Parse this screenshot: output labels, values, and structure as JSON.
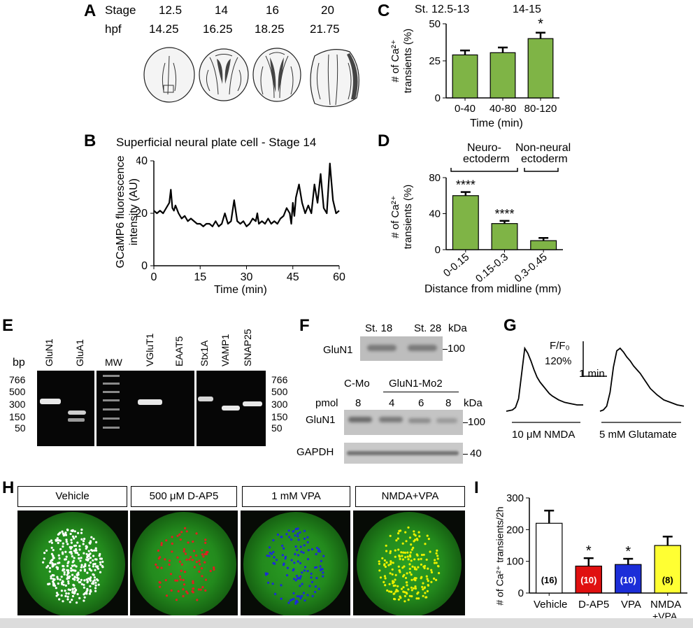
{
  "panelA": {
    "label": "A",
    "row1_label": "Stage",
    "row2_label": "hpf",
    "stages": [
      "12.5",
      "14",
      "16",
      "20"
    ],
    "hpf": [
      "14.25",
      "16.25",
      "18.25",
      "21.75"
    ]
  },
  "panelB": {
    "label": "B",
    "title": "Superficial neural plate cell - Stage 14",
    "ylabel": "GCaMP6 fluorescence intensity (AU)",
    "ylabel_line1": "GCaMP6 fluorescence",
    "ylabel_line2": "intensity (AU)",
    "xlabel": "Time (min)",
    "yticks": [
      "0",
      "20",
      "40"
    ],
    "xticks": [
      "0",
      "15",
      "30",
      "45",
      "60"
    ]
  },
  "panelC": {
    "label": "C",
    "top_left": "St. 12.5-13",
    "top_right": "14-15",
    "ylabel_line1": "# of Ca²⁺",
    "ylabel_line2": "transients (%)",
    "xlabel": "Time (min)",
    "yticks": [
      "0",
      "25",
      "50"
    ],
    "star": "*"
  },
  "panelD": {
    "label": "D",
    "group1_line1": "Neuro-",
    "group1_line2": "ectoderm",
    "group2_line1": "Non-neural",
    "group2_line2": "ectoderm",
    "ylabel_line1": "# of Ca²⁺",
    "ylabel_line2": "transients (%)",
    "xlabel": "Distance from midline (mm)",
    "yticks": [
      "0",
      "40",
      "80"
    ],
    "stars": [
      "****",
      "****"
    ]
  },
  "panelE": {
    "label": "E",
    "bp": "bp",
    "lanes": [
      "GluN1",
      "GluA1",
      "MW",
      "VGluT1",
      "EAAT5",
      "Stx1A",
      "VAMP1",
      "SNAP25"
    ],
    "left_markers": [
      "766",
      "500",
      "300",
      "150",
      "50"
    ],
    "right_markers": [
      "766",
      "500",
      "300",
      "150",
      "50"
    ]
  },
  "panelF": {
    "label": "F",
    "top_lanes": [
      "St. 18",
      "St. 28"
    ],
    "kda": "kDa",
    "top_row_label": "GluN1",
    "top_marker": "100",
    "cmo": "C-Mo",
    "gmo": "GluN1-Mo2",
    "pmol_label": "pmol",
    "pmol": [
      "8",
      "4",
      "6",
      "8"
    ],
    "kda2": "kDa",
    "row_gluN1": "GluN1",
    "row_gapdh": "GAPDH",
    "marker_100": "100",
    "marker_40": "40"
  },
  "panelG": {
    "label": "G",
    "scale_y": "F/F₀",
    "scale_y_value": "120%",
    "scale_x": "1 min",
    "trace1": "10 μM NMDA",
    "trace2": "5 mM Glutamate"
  },
  "panelH": {
    "label": "H",
    "titles": [
      "Vehicle",
      "500 μM D-AP5",
      "1 mM VPA",
      "NMDA+VPA"
    ],
    "dot_colors": [
      "#ffffff",
      "#e02020",
      "#1c2bd8",
      "#e8f000"
    ]
  },
  "panelI": {
    "label": "I",
    "ylabel": "# of Ca²⁺ transients/2h",
    "yticks": [
      "0",
      "100",
      "200",
      "300"
    ],
    "categories": [
      "Vehicle",
      "D-AP5",
      "VPA",
      "NMDA",
      "+VPA"
    ],
    "ns": [
      "(16)",
      "(10)",
      "(10)",
      "(8)"
    ],
    "stars": [
      "*",
      "*"
    ]
  },
  "chart_data": [
    {
      "type": "line",
      "panel": "B",
      "title": "Superficial neural plate cell - Stage 14",
      "xlabel": "Time (min)",
      "ylabel": "GCaMP6 fluorescence intensity (AU)",
      "xlim": [
        0,
        60
      ],
      "ylim": [
        0,
        40
      ],
      "x": [
        0,
        1,
        2,
        3,
        4,
        5,
        5.5,
        6,
        6.5,
        7,
        8,
        9,
        10,
        11,
        12,
        13,
        14,
        15,
        16,
        17,
        18,
        19,
        20,
        21,
        22,
        23,
        24,
        25,
        26,
        27,
        28,
        29,
        30,
        31,
        32,
        33,
        33.5,
        34,
        35,
        36,
        37,
        38,
        39,
        40,
        41,
        42,
        43,
        44,
        44.5,
        45,
        45.5,
        46,
        47,
        48,
        49,
        50,
        51,
        52,
        53,
        54,
        55,
        56,
        57,
        58,
        59,
        60
      ],
      "y": [
        21,
        20,
        21,
        20,
        22,
        24,
        29,
        22,
        21,
        23,
        20,
        18,
        19,
        17,
        18,
        17,
        16,
        16,
        15,
        16,
        16,
        15,
        17,
        15,
        16,
        20,
        16,
        17,
        25,
        17,
        16,
        17,
        15,
        16,
        18,
        17,
        20,
        16,
        17,
        16,
        18,
        16,
        17,
        16,
        18,
        19,
        22,
        20,
        16,
        24,
        19,
        26,
        31,
        24,
        20,
        23,
        20,
        31,
        24,
        35,
        22,
        20,
        39,
        25,
        20,
        21
      ],
      "series": [
        {
          "name": "",
          "color": "#000000"
        }
      ]
    },
    {
      "type": "bar",
      "panel": "C",
      "categories": [
        "0-40",
        "40-80",
        "80-120"
      ],
      "values": [
        29,
        30.5,
        40
      ],
      "errors": [
        3,
        3.5,
        4
      ],
      "xlabel": "Time (min)",
      "ylabel": "# of Ca²⁺ transients (%)",
      "ylim": [
        0,
        50
      ]
    },
    {
      "type": "bar",
      "panel": "D",
      "categories": [
        "0-0.15",
        "0.15-0.3",
        "0.3-0.45"
      ],
      "values": [
        60,
        29,
        10
      ],
      "errors": [
        4,
        3,
        3
      ],
      "xlabel": "Distance from midline (mm)",
      "ylabel": "# of Ca²⁺ transients (%)",
      "ylim": [
        0,
        80
      ]
    },
    {
      "type": "bar",
      "panel": "I",
      "categories": [
        "Vehicle",
        "D-AP5",
        "VPA",
        "NMDA +VPA"
      ],
      "values": [
        220,
        85,
        90,
        150
      ],
      "errors": [
        40,
        25,
        18,
        28
      ],
      "colors": [
        "#ffffff",
        "#e01010",
        "#1c2ed8",
        "#ffff33"
      ],
      "ylabel": "# of Ca²⁺ transients/2h",
      "ylim": [
        0,
        300
      ]
    },
    {
      "type": "line",
      "panel": "G",
      "series": [
        {
          "name": "10 μM NMDA",
          "x": [
            0,
            2,
            4,
            6,
            8,
            10,
            12,
            14,
            16,
            18,
            20,
            22,
            24,
            26,
            28,
            30,
            34,
            38,
            42,
            46,
            50
          ],
          "y": [
            0,
            1,
            2,
            6,
            20,
            60,
            100,
            92,
            80,
            66,
            54,
            46,
            40,
            34,
            28,
            24,
            18,
            14,
            12,
            10,
            10
          ]
        },
        {
          "name": "5 mM Glutamate",
          "x": [
            0,
            2,
            4,
            6,
            8,
            10,
            12,
            14,
            16,
            18,
            20,
            22,
            24,
            26,
            28,
            30,
            34,
            38,
            42,
            46,
            50
          ],
          "y": [
            0,
            2,
            8,
            30,
            70,
            96,
            100,
            94,
            86,
            80,
            72,
            66,
            60,
            52,
            44,
            36,
            26,
            18,
            14,
            10,
            8
          ]
        }
      ]
    }
  ]
}
